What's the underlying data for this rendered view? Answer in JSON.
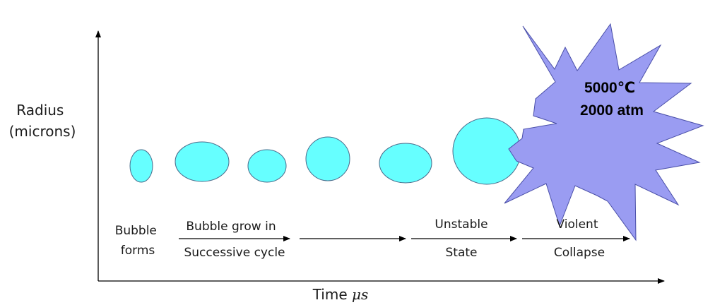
{
  "axes": {
    "y_label_line1": "Radius",
    "y_label_line2": "(microns)",
    "x_label_text": "Time",
    "x_label_unit": "μs"
  },
  "stages": {
    "forms_line1": "Bubble",
    "forms_line2": "forms",
    "grow_line1": "Bubble grow in",
    "grow_line2": "Successive cycle",
    "unstable_line1": "Unstable",
    "unstable_line2": "State",
    "violent_line1": "Violent",
    "violent_line2": "Collapse"
  },
  "burst": {
    "line1": "5000℃",
    "line2": "2000 atm"
  },
  "colors": {
    "bubble_fill": "#66ffff",
    "bubble_stroke": "#4a6a8a",
    "burst_fill": "#9a9cf2",
    "burst_stroke": "#4a4fa8",
    "line": "#000000"
  }
}
